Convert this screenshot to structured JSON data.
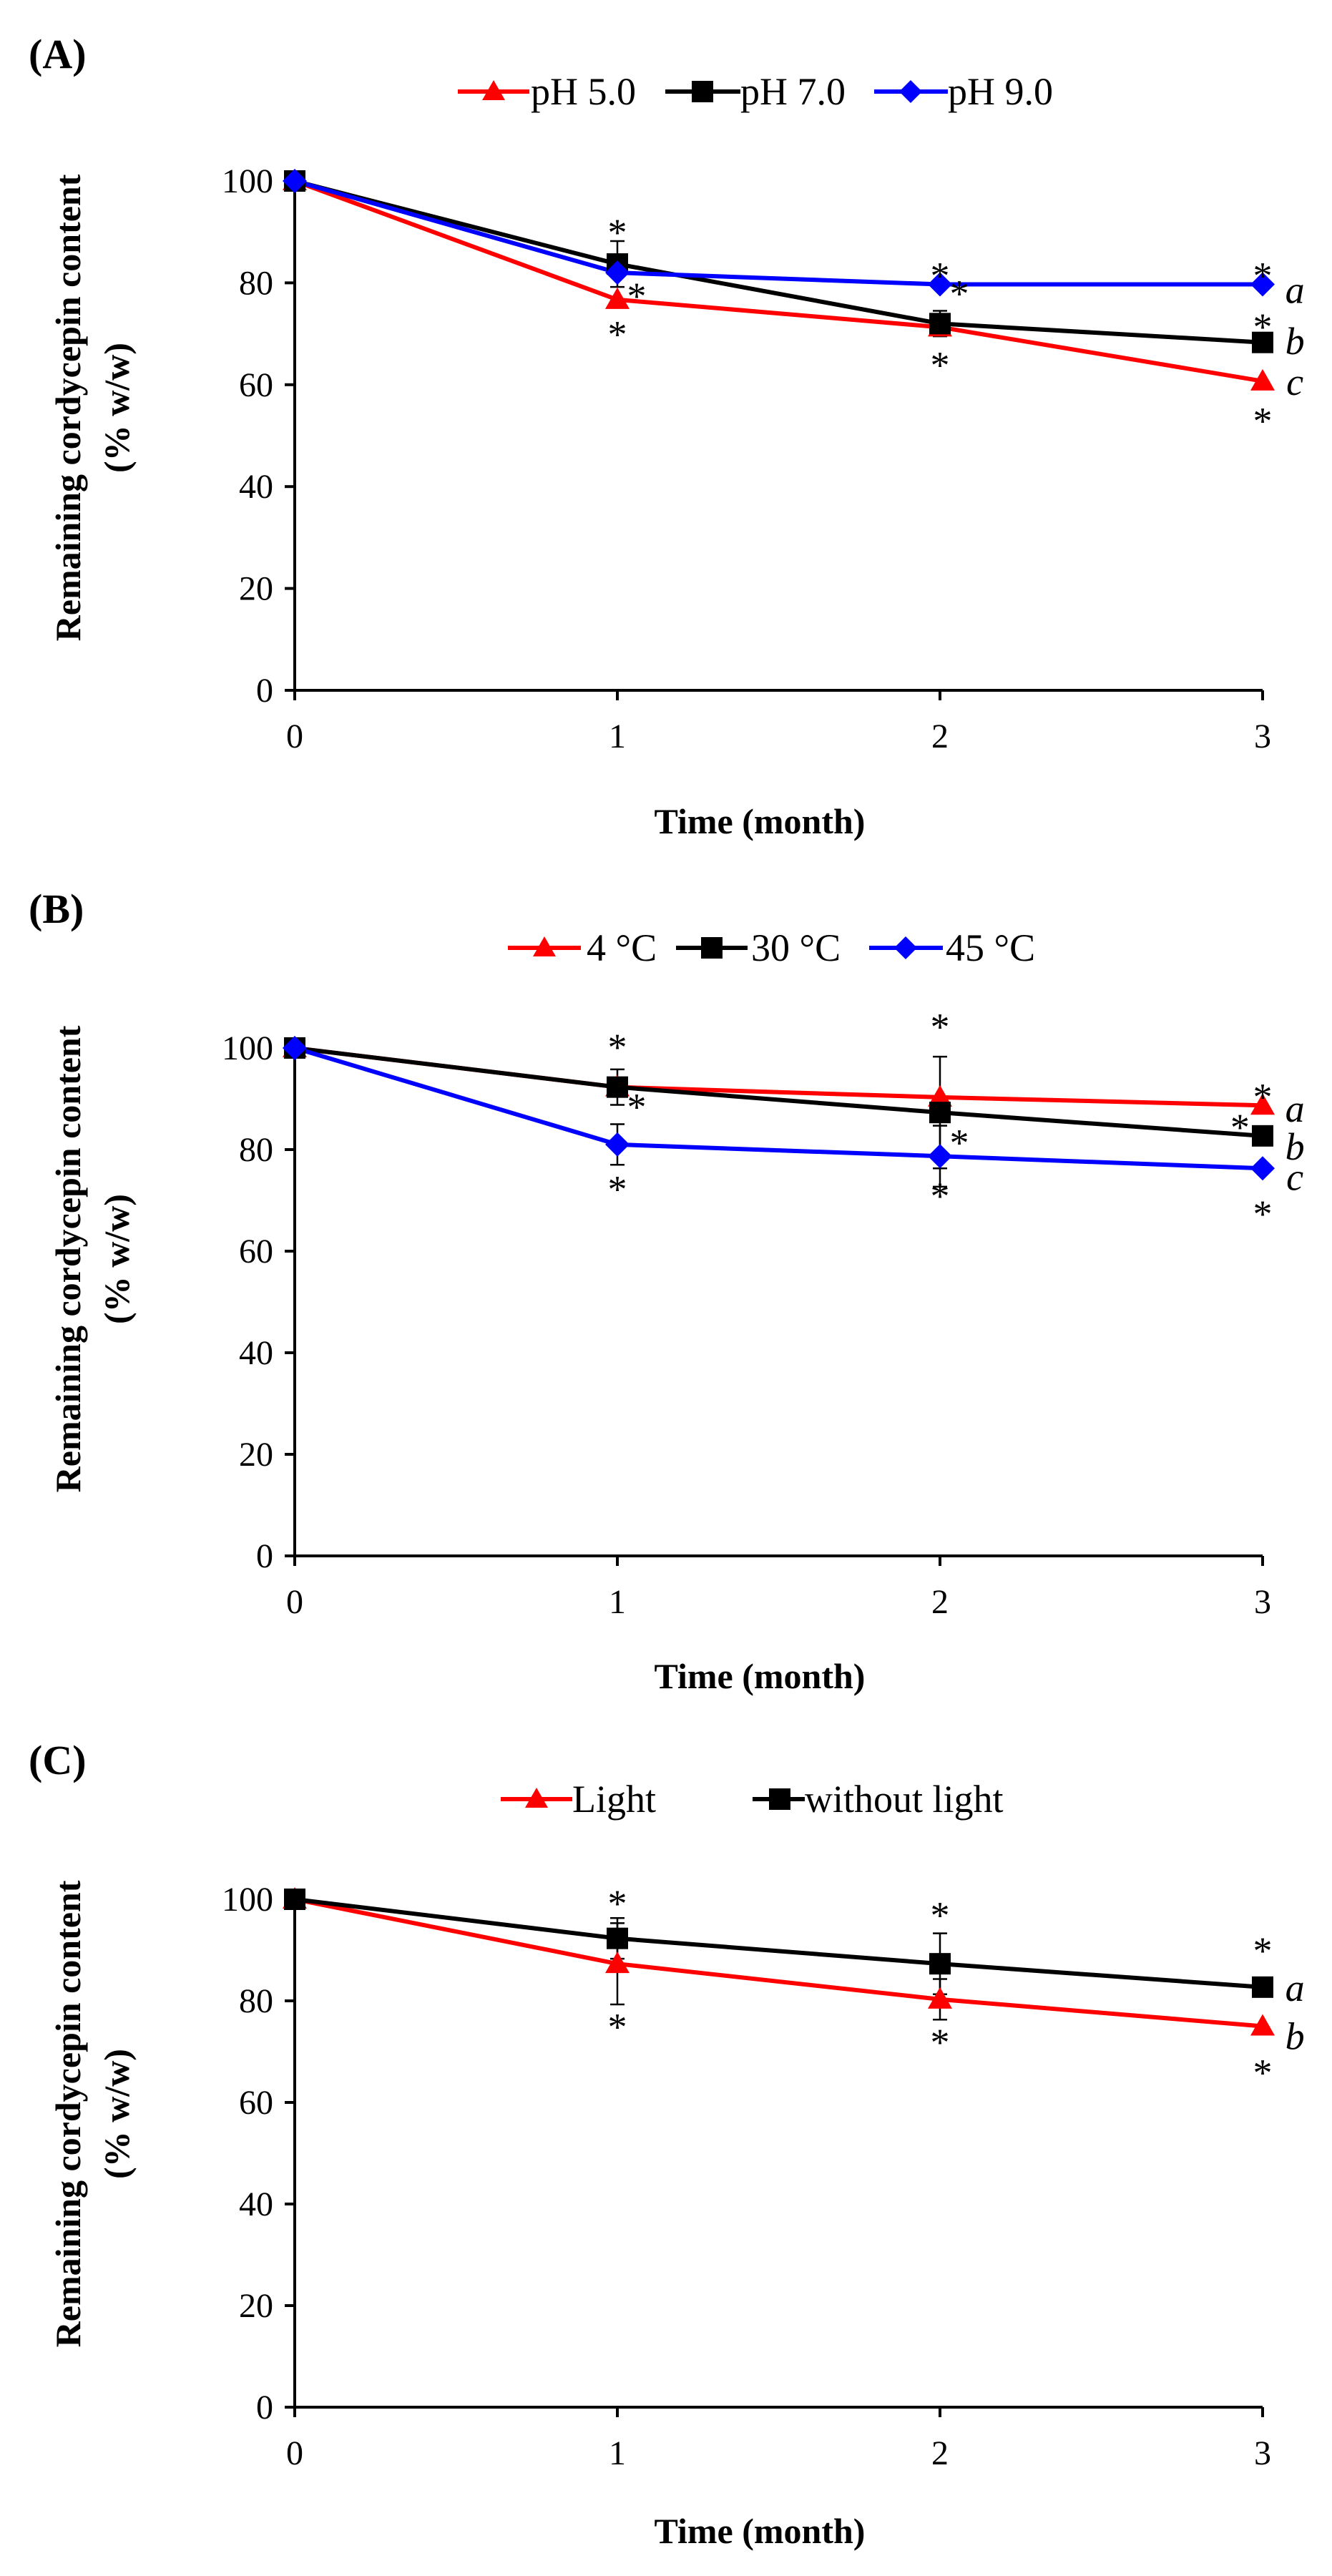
{
  "chart_data": [
    {
      "type": "line",
      "panel_label": "(A)",
      "xlabel": "Time (month)",
      "ylabel_line1": "Remaining cordycepin content",
      "ylabel_line2": "(% w/w)",
      "x": [
        0,
        1,
        2,
        3
      ],
      "x_tick_labels": [
        "0",
        "1",
        "2",
        "3"
      ],
      "ylim": [
        0,
        100
      ],
      "y_tick_labels": [
        "0",
        "20",
        "40",
        "60",
        "80",
        "100"
      ],
      "legend_position": "top-center",
      "series": [
        {
          "name": "pH 5.0",
          "color": "#ff0000",
          "marker": "triangle",
          "values": [
            100,
            76.7,
            71.3,
            60.7
          ],
          "errors": [
            0,
            0,
            0,
            0
          ]
        },
        {
          "name": "pH 7.0",
          "color": "#000000",
          "marker": "square",
          "values": [
            100,
            83.7,
            72.0,
            68.3
          ],
          "errors": [
            0,
            4.5,
            2.5,
            0
          ]
        },
        {
          "name": "pH 9.0",
          "color": "#0000ff",
          "marker": "diamond",
          "values": [
            100,
            82.0,
            79.7,
            79.7
          ],
          "errors": [
            0,
            0,
            0,
            0
          ]
        }
      ],
      "significance_stars": [
        {
          "x": 1,
          "y": 90.7,
          "text": "*"
        },
        {
          "x": 1.06,
          "y": 78.2,
          "text": "*"
        },
        {
          "x": 1,
          "y": 70.7,
          "text": "*"
        },
        {
          "x": 2,
          "y": 82.2,
          "text": "*"
        },
        {
          "x": 2.06,
          "y": 78.7,
          "text": "*"
        },
        {
          "x": 2,
          "y": 64.7,
          "text": "*"
        },
        {
          "x": 3,
          "y": 82.2,
          "text": "*"
        },
        {
          "x": 3,
          "y": 72.2,
          "text": "*"
        },
        {
          "x": 3,
          "y": 53.7,
          "text": "*"
        }
      ],
      "letters": [
        {
          "x": 3.1,
          "y": 78.0,
          "text": "a"
        },
        {
          "x": 3.1,
          "y": 68.0,
          "text": "b"
        },
        {
          "x": 3.1,
          "y": 60.0,
          "text": "c"
        }
      ]
    },
    {
      "type": "line",
      "panel_label": "(B)",
      "xlabel": "Time (month)",
      "ylabel_line1": "Remaining cordycepin content",
      "ylabel_line2": "(% w/w)",
      "x": [
        0,
        1,
        2,
        3
      ],
      "x_tick_labels": [
        "0",
        "1",
        "2",
        "3"
      ],
      "ylim": [
        0,
        100
      ],
      "y_tick_labels": [
        "0",
        "20",
        "40",
        "60",
        "80",
        "100"
      ],
      "legend_position": "top-center",
      "series": [
        {
          "name": "4 °C",
          "color": "#ff0000",
          "marker": "triangle",
          "values": [
            100,
            92.3,
            90.3,
            88.7
          ],
          "errors": [
            0,
            0,
            0,
            0
          ]
        },
        {
          "name": "30 °C",
          "color": "#000000",
          "marker": "square",
          "values": [
            100,
            92.3,
            87.3,
            82.7
          ],
          "errors": [
            0,
            3.5,
            11.0,
            0
          ]
        },
        {
          "name": "45 °C",
          "color": "#0000ff",
          "marker": "diamond",
          "values": [
            100,
            81.0,
            78.7,
            76.3
          ],
          "errors": [
            0,
            4.0,
            6.0,
            0
          ]
        }
      ],
      "significance_stars": [
        {
          "x": 1,
          "y": 101.0,
          "text": "*"
        },
        {
          "x": 1.06,
          "y": 89.2,
          "text": "*"
        },
        {
          "x": 1,
          "y": 73.0,
          "text": "*"
        },
        {
          "x": 2,
          "y": 105.0,
          "text": "*"
        },
        {
          "x": 2.06,
          "y": 82.2,
          "text": "*"
        },
        {
          "x": 2,
          "y": 71.7,
          "text": "*"
        },
        {
          "x": 3,
          "y": 91.2,
          "text": "*"
        },
        {
          "x": 2.93,
          "y": 85.2,
          "text": "*"
        },
        {
          "x": 3,
          "y": 68.2,
          "text": "*"
        }
      ],
      "letters": [
        {
          "x": 3.1,
          "y": 87.5,
          "text": "a"
        },
        {
          "x": 3.1,
          "y": 80.0,
          "text": "b"
        },
        {
          "x": 3.1,
          "y": 74.0,
          "text": "c"
        }
      ]
    },
    {
      "type": "line",
      "panel_label": "(C)",
      "xlabel": "Time (month)",
      "ylabel_line1": "Remaining cordycepin content",
      "ylabel_line2": "(% w/w)",
      "x": [
        0,
        1,
        2,
        3
      ],
      "x_tick_labels": [
        "0",
        "1",
        "2",
        "3"
      ],
      "ylim": [
        0,
        100
      ],
      "y_tick_labels": [
        "0",
        "20",
        "40",
        "60",
        "80",
        "100"
      ],
      "legend_position": "top-center",
      "series": [
        {
          "name": "Light",
          "color": "#ff0000",
          "marker": "triangle",
          "values": [
            100,
            87.3,
            80.3,
            75.0
          ],
          "errors": [
            0,
            8.0,
            4.0,
            0
          ]
        },
        {
          "name": "without light",
          "color": "#000000",
          "marker": "square",
          "values": [
            100,
            92.3,
            87.3,
            82.7
          ],
          "errors": [
            0,
            4.0,
            6.0,
            0
          ]
        }
      ],
      "significance_stars": [
        {
          "x": 1,
          "y": 100.0,
          "text": "*"
        },
        {
          "x": 1,
          "y": 75.7,
          "text": "*"
        },
        {
          "x": 2,
          "y": 97.7,
          "text": "*"
        },
        {
          "x": 2,
          "y": 72.7,
          "text": "*"
        },
        {
          "x": 3,
          "y": 90.7,
          "text": "*"
        },
        {
          "x": 3,
          "y": 66.7,
          "text": "*"
        }
      ],
      "letters": [
        {
          "x": 3.1,
          "y": 82.0,
          "text": "a"
        },
        {
          "x": 3.1,
          "y": 72.5,
          "text": "b"
        }
      ]
    }
  ]
}
